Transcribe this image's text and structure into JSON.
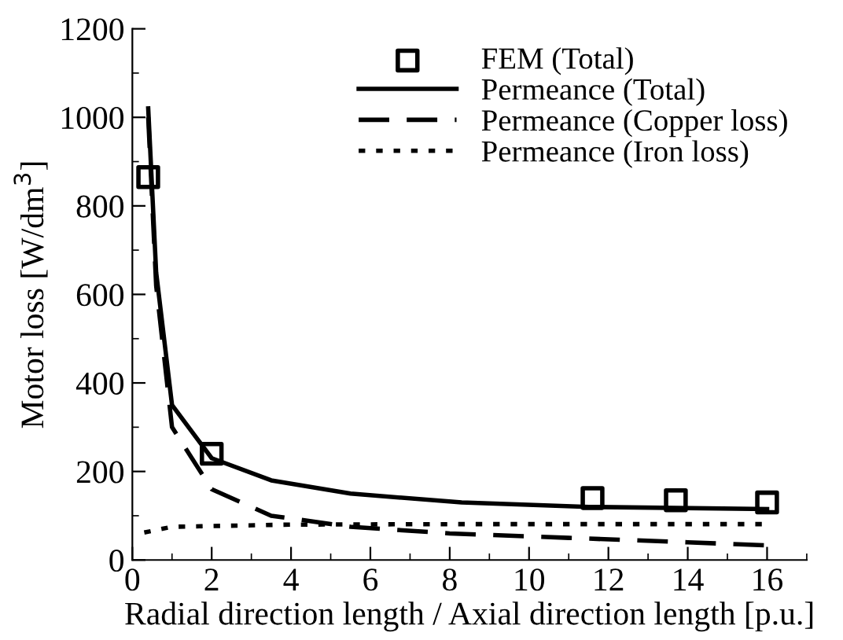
{
  "chart_data": {
    "type": "line",
    "xlabel": "Radial direction length / Axial direction length [p.u.]",
    "ylabel": "Motor loss [W/dm$^{3}$]",
    "xlim": [
      0,
      17
    ],
    "ylim": [
      0,
      1200
    ],
    "xticks": [
      0,
      2,
      4,
      6,
      8,
      10,
      12,
      14,
      16
    ],
    "yticks": [
      {
        "value": 0,
        "label": "0"
      },
      200,
      400,
      600,
      800,
      1000,
      1200
    ],
    "grid": false,
    "legend": "top right",
    "series": [
      {
        "name": "FEM (Total)",
        "type": "scatter",
        "marker": "square",
        "color": "#000000",
        "x": [
          0.4,
          2,
          11.6,
          13.7,
          16
        ],
        "values": [
          865,
          240,
          140,
          135,
          130
        ]
      },
      {
        "name": "Permeance (Total)",
        "line_style": "solid",
        "color": "#000000",
        "x": [
          0.4,
          0.6,
          1,
          2,
          3.5,
          5.5,
          8.3,
          11.5,
          16
        ],
        "values": [
          1020,
          650,
          350,
          230,
          180,
          150,
          130,
          120,
          115
        ]
      },
      {
        "name": "Permeance (Copper loss)",
        "line_style": "dashed",
        "color": "#000000",
        "x": [
          0.4,
          0.6,
          1,
          2,
          3.5,
          5.5,
          8,
          11,
          14,
          16
        ],
        "values": [
          1000,
          620,
          300,
          160,
          100,
          75,
          60,
          50,
          40,
          33
        ]
      },
      {
        "name": "Permeance (Iron loss)",
        "line_style": "dotted",
        "color": "#000000",
        "x": [
          0.3,
          1,
          4,
          8,
          12,
          16
        ],
        "values": [
          62,
          75,
          80,
          81,
          81,
          81
        ]
      }
    ]
  }
}
